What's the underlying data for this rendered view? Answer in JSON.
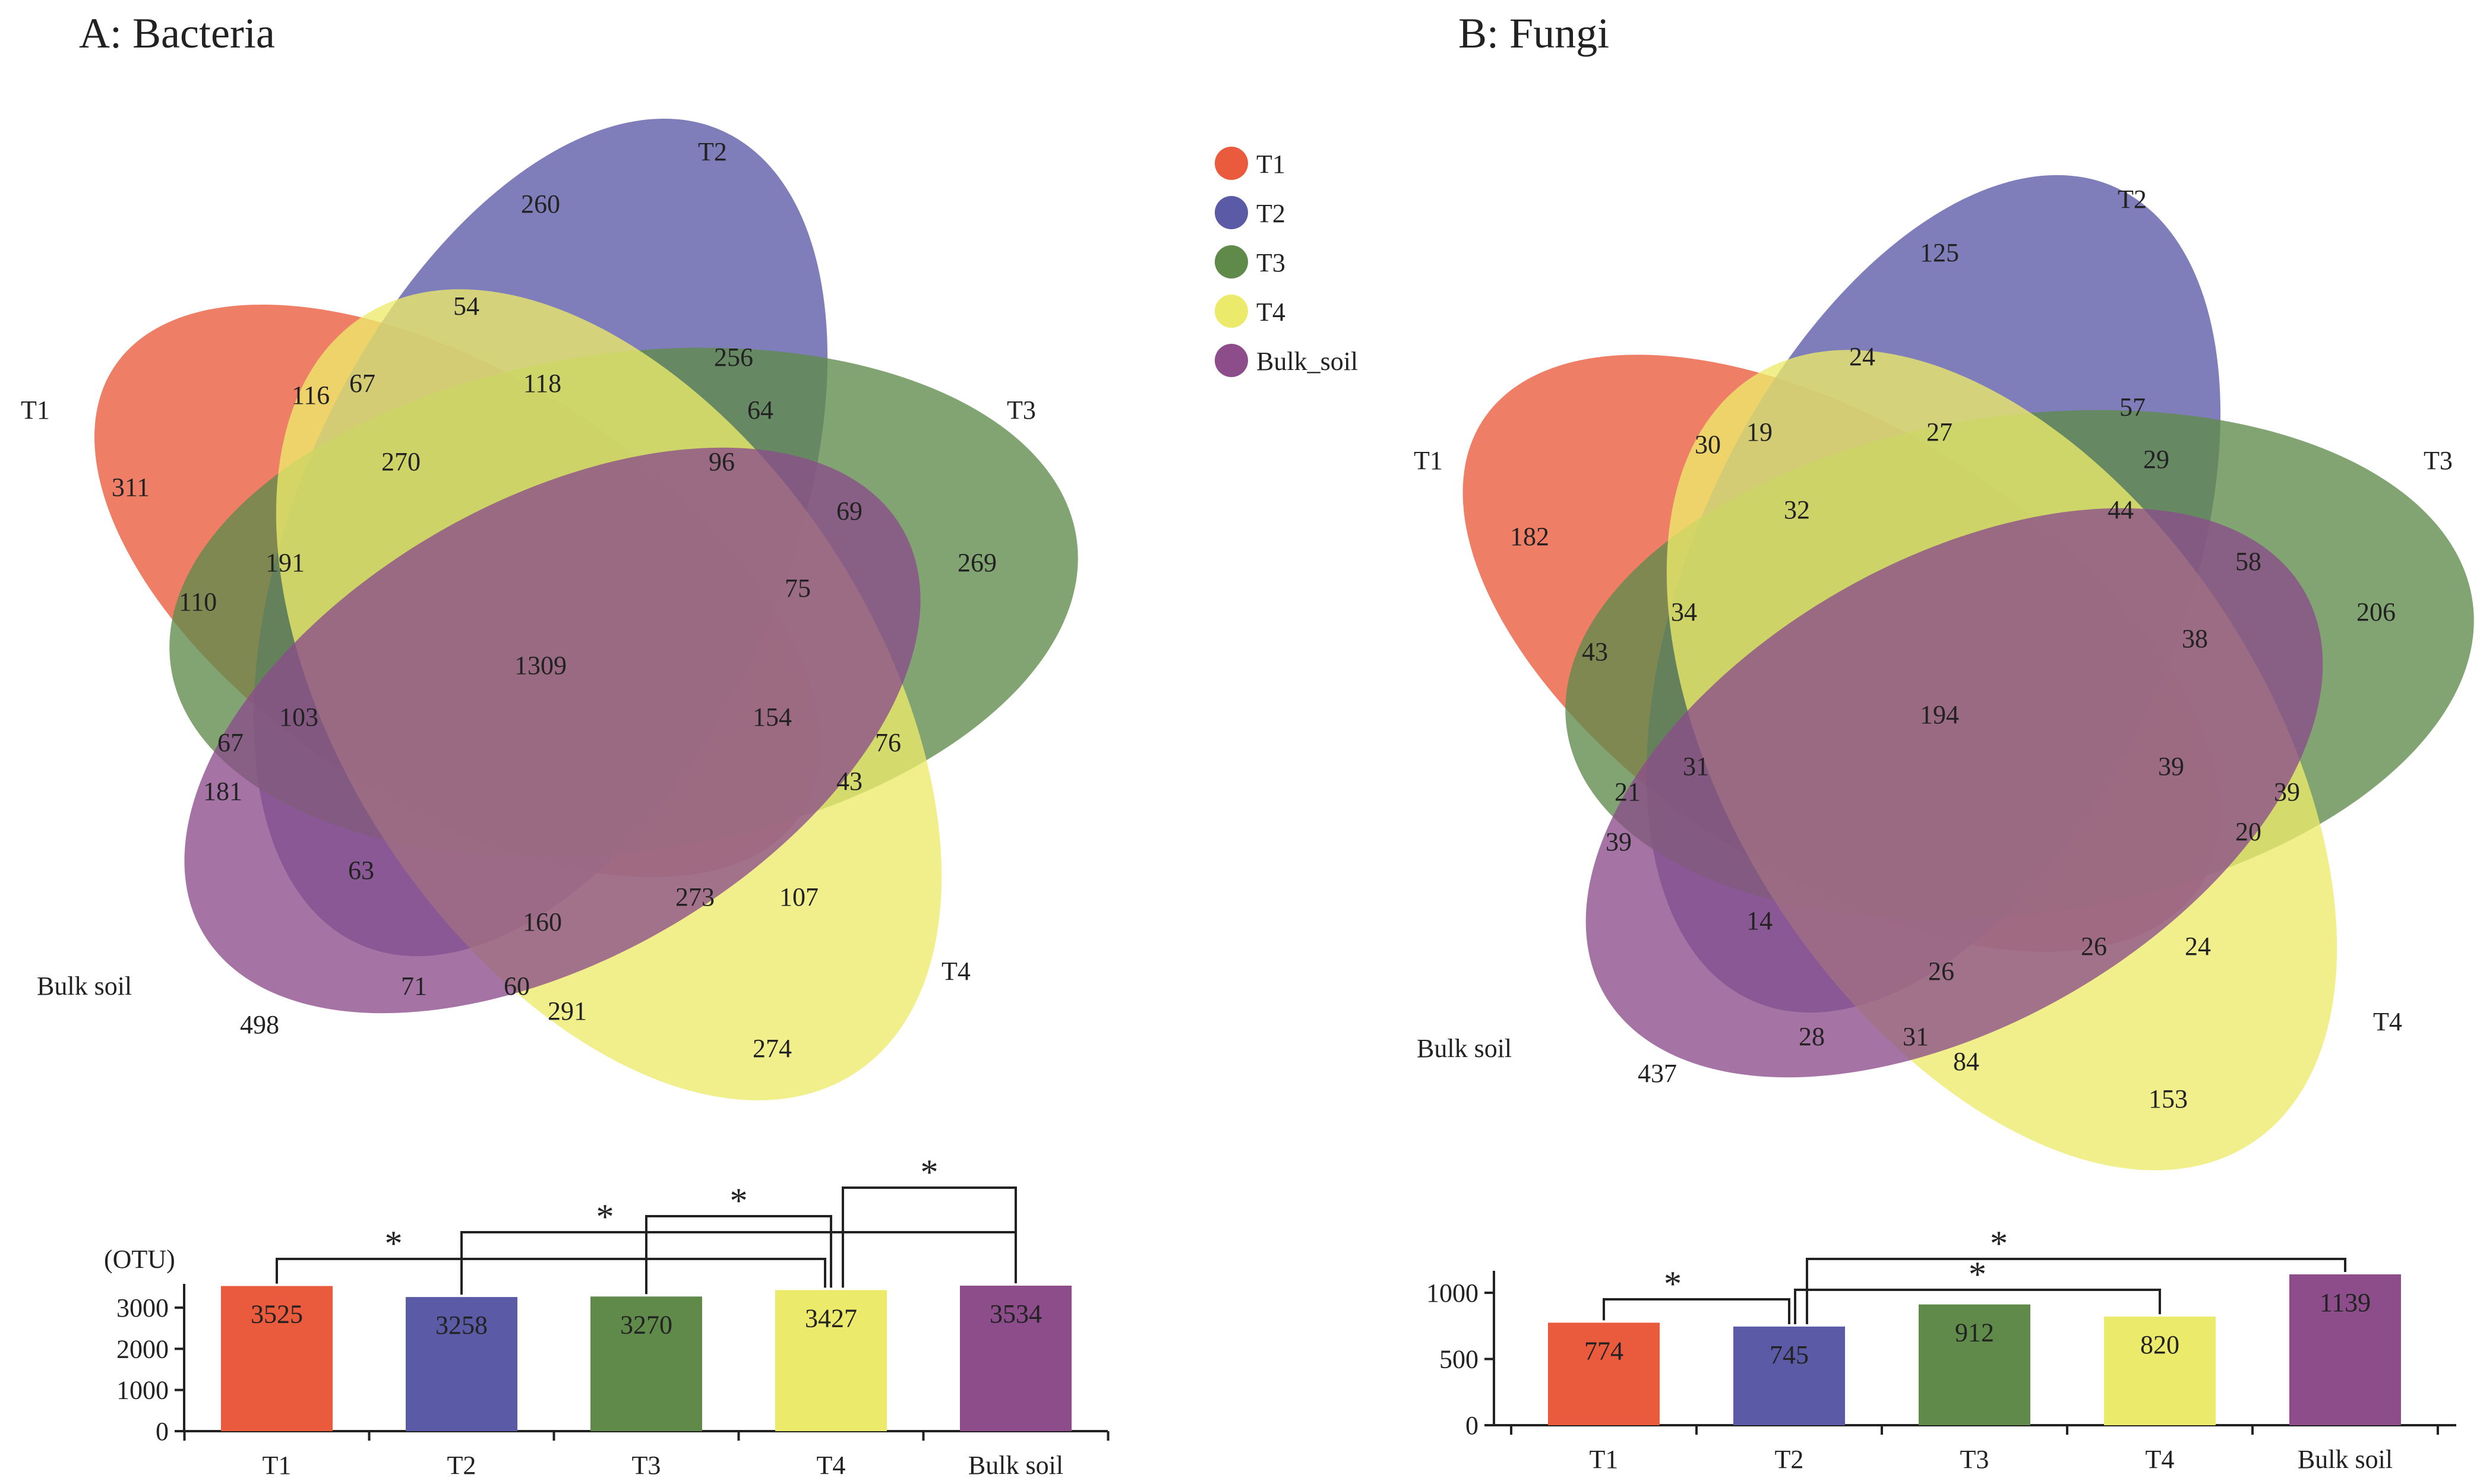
{
  "chart_data": [
    {
      "type": "venn",
      "title": "A: Bacteria",
      "sets": [
        "T1",
        "T2",
        "T3",
        "T4",
        "Bulk soil"
      ],
      "regions": [
        {
          "label": "311",
          "sets": [
            "T1"
          ]
        },
        {
          "label": "260",
          "sets": [
            "T2"
          ]
        },
        {
          "label": "269",
          "sets": [
            "T3"
          ]
        },
        {
          "label": "274",
          "sets": [
            "T4"
          ]
        },
        {
          "label": "498",
          "sets": [
            "Bulk soil"
          ]
        },
        {
          "label": "54",
          "sets": [
            "T2",
            "T4"
          ]
        },
        {
          "label": "116",
          "sets": [
            "T1",
            "T2"
          ]
        },
        {
          "label": "67",
          "sets": [
            "T1",
            "T2",
            "T4"
          ]
        },
        {
          "label": "118",
          "sets": [
            "T2",
            "T3",
            "T4"
          ]
        },
        {
          "label": "256",
          "sets": [
            "T2",
            "T3"
          ]
        },
        {
          "label": "64",
          "sets": [
            "T2",
            "T3",
            "Bulk soil"
          ]
        },
        {
          "label": "270",
          "sets": [
            "T1",
            "T2",
            "T3",
            "T4"
          ]
        },
        {
          "label": "96",
          "sets": [
            "T2",
            "T3",
            "T4",
            "Bulk soil"
          ]
        },
        {
          "label": "69",
          "sets": [
            "T2",
            "T3",
            "Bulk soil"
          ]
        },
        {
          "label": "191",
          "sets": [
            "T1",
            "T2",
            "T3"
          ]
        },
        {
          "label": "110",
          "sets": [
            "T1",
            "T3"
          ]
        },
        {
          "label": "75",
          "sets": [
            "T3",
            "T4",
            "Bulk soil"
          ]
        },
        {
          "label": "1309",
          "sets": [
            "T1",
            "T2",
            "T3",
            "T4",
            "Bulk soil"
          ]
        },
        {
          "label": "103",
          "sets": [
            "T1",
            "T2",
            "T3",
            "Bulk soil"
          ]
        },
        {
          "label": "154",
          "sets": [
            "T1",
            "T3",
            "T4",
            "Bulk soil"
          ]
        },
        {
          "label": "76",
          "sets": [
            "T3",
            "T4"
          ]
        },
        {
          "label": "67",
          "sets": [
            "T1",
            "T3",
            "Bulk soil"
          ]
        },
        {
          "label": "43",
          "sets": [
            "T1",
            "T3",
            "T4"
          ]
        },
        {
          "label": "181",
          "sets": [
            "T1",
            "Bulk soil"
          ]
        },
        {
          "label": "63",
          "sets": [
            "T1",
            "T2",
            "Bulk soil"
          ]
        },
        {
          "label": "160",
          "sets": [
            "T1",
            "T2",
            "T4",
            "Bulk soil"
          ]
        },
        {
          "label": "273",
          "sets": [
            "T1",
            "T4",
            "Bulk soil"
          ]
        },
        {
          "label": "107",
          "sets": [
            "T1",
            "T4"
          ]
        },
        {
          "label": "71",
          "sets": [
            "T2",
            "Bulk soil"
          ]
        },
        {
          "label": "60",
          "sets": [
            "T2",
            "T4",
            "Bulk soil"
          ]
        },
        {
          "label": "291",
          "sets": [
            "T4",
            "Bulk soil"
          ]
        }
      ],
      "bar": {
        "ylabel": "(OTU)",
        "categories": [
          "T1",
          "T2",
          "T3",
          "T4",
          "Bulk soil"
        ],
        "values": [
          3525,
          3258,
          3270,
          3427,
          3534
        ],
        "value_labels": [
          "3525",
          "3258",
          "3270",
          "3427",
          "3534"
        ],
        "yticks": [
          0,
          1000,
          2000,
          3000
        ],
        "ytick_labels": [
          "0",
          "1000",
          "2000",
          "3000"
        ],
        "ylim": [
          0,
          3534
        ],
        "significance": [
          {
            "pair": [
              "T1",
              "T4"
            ],
            "label": "*"
          },
          {
            "pair": [
              "T2",
              "Bulk soil"
            ],
            "label": "*"
          },
          {
            "pair": [
              "T3",
              "T4"
            ],
            "label": "*"
          },
          {
            "pair": [
              "T4",
              "Bulk soil"
            ],
            "label": "*"
          }
        ]
      }
    },
    {
      "type": "venn",
      "title": "B: Fungi",
      "sets": [
        "T1",
        "T2",
        "T3",
        "T4",
        "Bulk soil"
      ],
      "regions": [
        {
          "label": "182",
          "sets": [
            "T1"
          ]
        },
        {
          "label": "125",
          "sets": [
            "T2"
          ]
        },
        {
          "label": "206",
          "sets": [
            "T3"
          ]
        },
        {
          "label": "153",
          "sets": [
            "T4"
          ]
        },
        {
          "label": "437",
          "sets": [
            "Bulk soil"
          ]
        },
        {
          "label": "24",
          "sets": [
            "T2",
            "T4"
          ]
        },
        {
          "label": "30",
          "sets": [
            "T1",
            "T2"
          ]
        },
        {
          "label": "19",
          "sets": [
            "T1",
            "T2",
            "T4"
          ]
        },
        {
          "label": "27",
          "sets": [
            "T2",
            "T3",
            "T4"
          ]
        },
        {
          "label": "57",
          "sets": [
            "T2",
            "T3"
          ]
        },
        {
          "label": "29",
          "sets": [
            "T2",
            "T3",
            "Bulk soil"
          ]
        },
        {
          "label": "32",
          "sets": [
            "T1",
            "T2",
            "T3",
            "T4"
          ]
        },
        {
          "label": "44",
          "sets": [
            "T2",
            "T3",
            "T4",
            "Bulk soil"
          ]
        },
        {
          "label": "58",
          "sets": [
            "T2",
            "T3",
            "Bulk soil"
          ]
        },
        {
          "label": "34",
          "sets": [
            "T1",
            "T2",
            "T3"
          ]
        },
        {
          "label": "43",
          "sets": [
            "T1",
            "T3"
          ]
        },
        {
          "label": "38",
          "sets": [
            "T3",
            "T4",
            "Bulk soil"
          ]
        },
        {
          "label": "194",
          "sets": [
            "T1",
            "T2",
            "T3",
            "T4",
            "Bulk soil"
          ]
        },
        {
          "label": "31",
          "sets": [
            "T1",
            "T2",
            "T3",
            "Bulk soil"
          ]
        },
        {
          "label": "39",
          "sets": [
            "T1",
            "T3",
            "T4",
            "Bulk soil"
          ]
        },
        {
          "label": "39",
          "sets": [
            "T3",
            "T4"
          ]
        },
        {
          "label": "21",
          "sets": [
            "T1",
            "T3",
            "Bulk soil"
          ]
        },
        {
          "label": "20",
          "sets": [
            "T1",
            "T3",
            "T4"
          ]
        },
        {
          "label": "39",
          "sets": [
            "T1",
            "Bulk soil"
          ]
        },
        {
          "label": "14",
          "sets": [
            "T1",
            "T2",
            "Bulk soil"
          ]
        },
        {
          "label": "26",
          "sets": [
            "T1",
            "T2",
            "T4",
            "Bulk soil"
          ]
        },
        {
          "label": "26",
          "sets": [
            "T1",
            "T4",
            "Bulk soil"
          ]
        },
        {
          "label": "24",
          "sets": [
            "T1",
            "T4"
          ]
        },
        {
          "label": "28",
          "sets": [
            "T2",
            "Bulk soil"
          ]
        },
        {
          "label": "31",
          "sets": [
            "T2",
            "T4",
            "Bulk soil"
          ]
        },
        {
          "label": "84",
          "sets": [
            "T4",
            "Bulk soil"
          ]
        }
      ],
      "bar": {
        "ylabel": "",
        "categories": [
          "T1",
          "T2",
          "T3",
          "T4",
          "Bulk soil"
        ],
        "values": [
          774,
          745,
          912,
          820,
          1139
        ],
        "value_labels": [
          "774",
          "745",
          "912",
          "820",
          "1139"
        ],
        "yticks": [
          0,
          500,
          1000
        ],
        "ytick_labels": [
          "0",
          "500",
          "1000"
        ],
        "ylim": [
          0,
          1139
        ],
        "significance": [
          {
            "pair": [
              "T1",
              "T2"
            ],
            "label": "*"
          },
          {
            "pair": [
              "T2",
              "T4"
            ],
            "label": "*"
          },
          {
            "pair": [
              "T2",
              "Bulk soil"
            ],
            "label": "*"
          }
        ]
      }
    }
  ],
  "legend": {
    "items": [
      {
        "label": "T1",
        "color": "#ea5a3c"
      },
      {
        "label": "T2",
        "color": "#5b5aa6"
      },
      {
        "label": "T3",
        "color": "#5f8a4a"
      },
      {
        "label": "T4",
        "color": "#ecea6a"
      },
      {
        "label": "Bulk_soil",
        "color": "#8c4d8a"
      }
    ]
  },
  "colors": {
    "T1": "#ea5a3c",
    "T2": "#5b5aa6",
    "T3": "#5f8a4a",
    "T4": "#ecea6a",
    "Bulk soil": "#8c4d8a"
  }
}
